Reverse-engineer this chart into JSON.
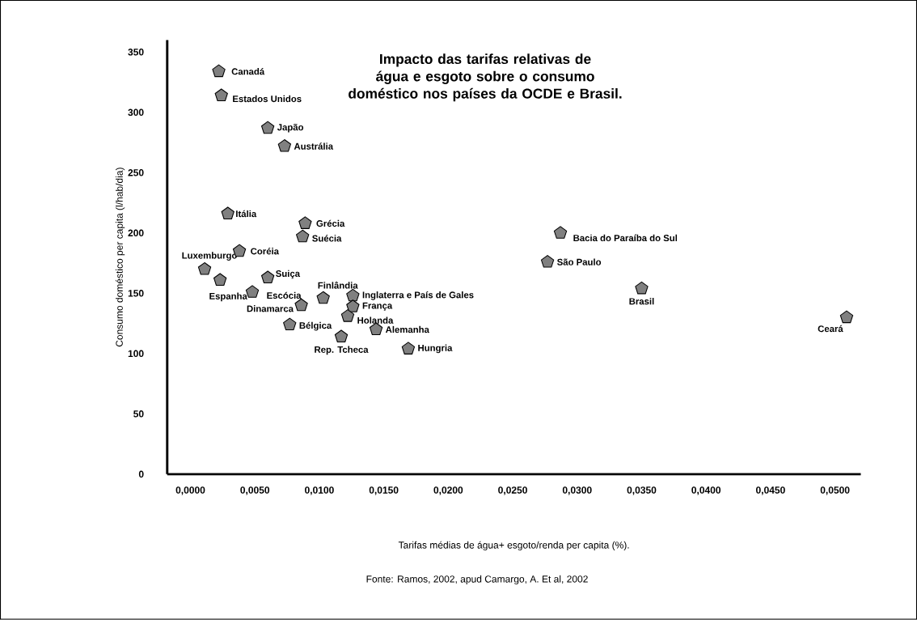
{
  "chart_data": {
    "type": "scatter",
    "title": "Impacto das tarifas relativas de água e esgoto sobre o consumo doméstico nos países da OCDE e Brasil.",
    "xlabel": "Tarifas médias de água+ esgoto/renda per capita (%).",
    "ylabel": "Consumo doméstico per capita (l/hab/dia)",
    "x": [
      0.0022,
      0.0024,
      0.006,
      0.0073,
      0.0029,
      0.0089,
      0.0087,
      0.0038,
      0.0011,
      0.0023,
      0.0048,
      0.006,
      0.0103,
      0.0126,
      0.0126,
      0.0122,
      0.0086,
      0.0077,
      0.0117,
      0.0144,
      0.0169,
      0.0287,
      0.0277,
      0.035,
      0.0509
    ],
    "values": [
      334,
      314,
      287,
      272,
      216,
      208,
      197,
      185,
      170,
      161,
      151,
      163,
      146,
      148,
      139,
      131,
      140,
      124,
      114,
      120,
      104,
      200,
      176,
      154,
      130
    ],
    "color": "#808080",
    "xlim": [
      -0.0018,
      0.052
    ],
    "ylim": [
      0,
      360
    ],
    "xticks": [
      {
        "value": 0,
        "label": "0,0000"
      },
      {
        "value": 0.005,
        "label": "0,0050"
      },
      {
        "value": 0.01,
        "label": "0,0100"
      },
      {
        "value": 0.015,
        "label": "0,0150"
      },
      {
        "value": 0.02,
        "label": "0,0200"
      },
      {
        "value": 0.025,
        "label": "0,0250"
      },
      {
        "value": 0.03,
        "label": "0,0300"
      },
      {
        "value": 0.035,
        "label": "0,0350"
      },
      {
        "value": 0.04,
        "label": "0,0400"
      },
      {
        "value": 0.045,
        "label": "0,0450"
      },
      {
        "value": 0.05,
        "label": "0,0500"
      }
    ],
    "yticks": [
      0,
      50,
      100,
      150,
      200,
      250,
      300,
      350
    ],
    "annotations": [
      {
        "text": "Canadá",
        "x": 0.0022,
        "y": 334
      },
      {
        "text": "Estados Unidos",
        "x": 0.0024,
        "y": 314
      },
      {
        "text": "Japão",
        "x": 0.006,
        "y": 287
      },
      {
        "text": "Austrália",
        "x": 0.0073,
        "y": 272
      },
      {
        "text": "Itália",
        "x": 0.0029,
        "y": 216
      },
      {
        "text": "Grécia",
        "x": 0.0089,
        "y": 208
      },
      {
        "text": "Suécia",
        "x": 0.0087,
        "y": 197
      },
      {
        "text": "Coréia",
        "x": 0.0038,
        "y": 185
      },
      {
        "text": "Luxemburgo",
        "x": 0.0011,
        "y": 170
      },
      {
        "text": "Espanha",
        "x": 0.0023,
        "y": 161
      },
      {
        "text": "Escócia",
        "x": 0.0048,
        "y": 151
      },
      {
        "text": "Suiça",
        "x": 0.006,
        "y": 163
      },
      {
        "text": "Finlândia",
        "x": 0.0103,
        "y": 146
      },
      {
        "text": "Inglaterra e País de Gales",
        "x": 0.0126,
        "y": 148
      },
      {
        "text": "França",
        "x": 0.0126,
        "y": 139
      },
      {
        "text": "Holanda",
        "x": 0.0122,
        "y": 131
      },
      {
        "text": "Dinamarca",
        "x": 0.0086,
        "y": 140
      },
      {
        "text": "Bélgica",
        "x": 0.0077,
        "y": 124
      },
      {
        "text": "Rep. Tcheca",
        "x": 0.0117,
        "y": 114
      },
      {
        "text": "Alemanha",
        "x": 0.0144,
        "y": 120
      },
      {
        "text": "Hungria",
        "x": 0.0169,
        "y": 104
      },
      {
        "text": "Bacia do Paraíba do Sul",
        "x": 0.0287,
        "y": 200
      },
      {
        "text": "São Paulo",
        "x": 0.0277,
        "y": 176
      },
      {
        "text": "Brasil",
        "x": 0.035,
        "y": 154
      },
      {
        "text": "Ceará",
        "x": 0.0509,
        "y": 130
      },
      "Fonte: Ramos, 2002, apud Camargo, A. Et al, 2002"
    ]
  }
}
